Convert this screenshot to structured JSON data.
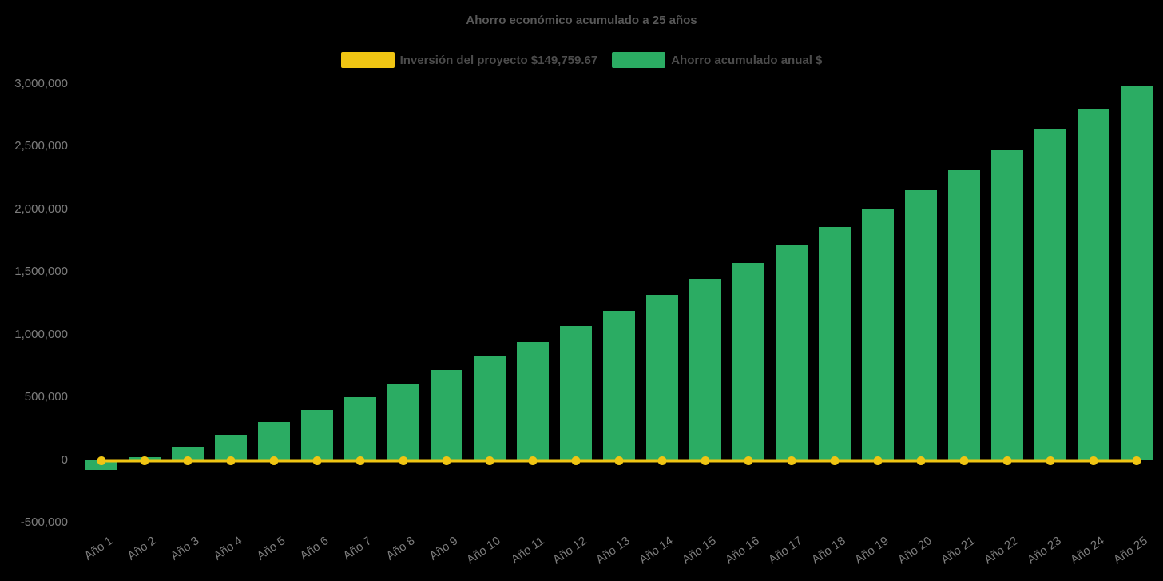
{
  "chart": {
    "background": "#000000",
    "colors": {
      "bar": "#2BAC63",
      "line": "#F0C513",
      "title_text": "#585858",
      "legend_text": "#4C4C4C",
      "axis_text": "#7D7D7D"
    }
  },
  "chart_data": {
    "type": "bar",
    "title": "Ahorro económico acumulado a 25 años",
    "xlabel": "",
    "ylabel": "",
    "grid": false,
    "legend_position": "top",
    "ylim": [
      -500000,
      3000000
    ],
    "ytick_values": [
      3000000,
      2500000,
      2000000,
      1500000,
      1000000,
      500000,
      0,
      -500000
    ],
    "ytick_labels": [
      "3,000,000",
      "2,500,000",
      "2,000,000",
      "1,500,000",
      "1,000,000",
      "500,000",
      "0",
      "-500,000"
    ],
    "categories": [
      "Año 1",
      "Año 2",
      "Año 3",
      "Año 4",
      "Año 5",
      "Año 6",
      "Año 7",
      "Año 8",
      "Año 9",
      "Año 10",
      "Año 11",
      "Año 12",
      "Año 13",
      "Año 14",
      "Año 15",
      "Año 16",
      "Año 17",
      "Año 18",
      "Año 19",
      "Año 20",
      "Año 21",
      "Año 22",
      "Año 23",
      "Año 24",
      "Año 25"
    ],
    "series": [
      {
        "name": "Inversión del proyecto $149,759.67",
        "type": "line",
        "color": "#F0C513",
        "values": [
          0,
          0,
          0,
          0,
          0,
          0,
          0,
          0,
          0,
          0,
          0,
          0,
          0,
          0,
          0,
          0,
          0,
          0,
          0,
          0,
          0,
          0,
          0,
          0,
          0
        ]
      },
      {
        "name": "Ahorro acumulado anual $",
        "type": "bar",
        "color": "#2BAC63",
        "values": [
          -82000,
          20000,
          108000,
          198000,
          300000,
          398000,
          498000,
          608000,
          718000,
          830000,
          940000,
          1065000,
          1185000,
          1313000,
          1440000,
          1570000,
          1710000,
          1855000,
          2000000,
          2150000,
          2310000,
          2470000,
          2640000,
          2800000,
          2980000
        ]
      }
    ]
  }
}
